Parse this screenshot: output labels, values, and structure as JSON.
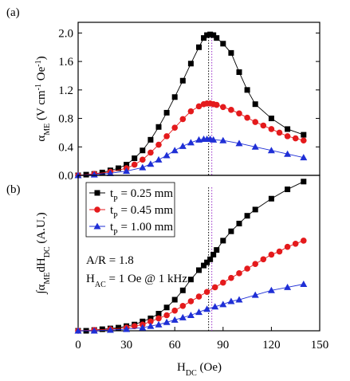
{
  "chart_data": [
    {
      "type": "line",
      "panel_label": "(a)",
      "ylabel": {
        "parts": [
          {
            "text": "α"
          },
          {
            "text": "ME",
            "shift": "sub"
          },
          {
            "text": " (V cm"
          },
          {
            "text": "-1",
            "shift": "super"
          },
          {
            "text": " Oe"
          },
          {
            "text": "-1",
            "shift": "super"
          },
          {
            "text": ")"
          }
        ]
      },
      "xlim": [
        0,
        150
      ],
      "ylim": [
        0,
        2.15
      ],
      "yticks": [
        {
          "value": 0,
          "label": "0.0"
        },
        0.4,
        0.8,
        1.2,
        1.6,
        {
          "value": 2,
          "label": "2.0"
        }
      ],
      "vlines": [
        {
          "x": 81,
          "color": "#000000"
        },
        {
          "x": 83,
          "color": "#9b30c9"
        }
      ],
      "series": [
        {
          "color": "#000000",
          "marker": "square",
          "x": [
            0,
            5,
            10,
            15,
            20,
            25,
            30,
            35,
            40,
            45,
            50,
            55,
            60,
            65,
            70,
            75,
            78,
            80,
            82,
            84,
            86,
            90,
            95,
            100,
            105,
            110,
            120,
            130,
            140
          ],
          "values": [
            0,
            0.01,
            0.02,
            0.04,
            0.07,
            0.1,
            0.15,
            0.24,
            0.35,
            0.5,
            0.68,
            0.88,
            1.1,
            1.33,
            1.57,
            1.8,
            1.93,
            1.97,
            1.98,
            1.97,
            1.93,
            1.85,
            1.72,
            1.45,
            1.2,
            1.0,
            0.8,
            0.65,
            0.57
          ]
        },
        {
          "color": "#e41a1c",
          "marker": "circle",
          "x": [
            0,
            10,
            20,
            30,
            35,
            40,
            45,
            50,
            55,
            60,
            65,
            70,
            75,
            78,
            80,
            82,
            84,
            86,
            90,
            95,
            100,
            105,
            110,
            115,
            120,
            125,
            130,
            135,
            140
          ],
          "values": [
            0,
            0.02,
            0.05,
            0.1,
            0.15,
            0.22,
            0.32,
            0.43,
            0.55,
            0.67,
            0.79,
            0.9,
            0.97,
            1.0,
            1.01,
            1.01,
            1.0,
            0.99,
            0.96,
            0.92,
            0.87,
            0.81,
            0.75,
            0.7,
            0.65,
            0.6,
            0.55,
            0.52,
            0.49
          ]
        },
        {
          "color": "#1f2fd6",
          "marker": "triangle",
          "x": [
            0,
            10,
            20,
            30,
            40,
            45,
            50,
            55,
            60,
            65,
            70,
            75,
            78,
            80,
            82,
            84,
            90,
            100,
            110,
            120,
            130,
            140
          ],
          "values": [
            0,
            0.01,
            0.03,
            0.06,
            0.11,
            0.16,
            0.22,
            0.28,
            0.35,
            0.41,
            0.46,
            0.5,
            0.51,
            0.51,
            0.51,
            0.5,
            0.49,
            0.45,
            0.4,
            0.35,
            0.3,
            0.25
          ]
        }
      ]
    },
    {
      "type": "line",
      "panel_label": "(b)",
      "ylabel": {
        "parts": [
          {
            "text": "∫α"
          },
          {
            "text": "ME",
            "shift": "sub"
          },
          {
            "text": "dH"
          },
          {
            "text": "DC",
            "shift": "sub"
          },
          {
            "text": " (A.U.)"
          }
        ]
      },
      "xlabel": {
        "parts": [
          {
            "text": "H"
          },
          {
            "text": "DC",
            "shift": "sub"
          },
          {
            "text": " (Oe)"
          }
        ]
      },
      "xlim": [
        0,
        150
      ],
      "ylim": [
        0,
        1
      ],
      "xticks": [
        0,
        30,
        60,
        90,
        120,
        150
      ],
      "vlines": [
        {
          "x": 81,
          "color": "#000000"
        },
        {
          "x": 83,
          "color": "#9b30c9"
        }
      ],
      "annotations": [
        {
          "parts": [
            {
              "text": "A/R = 1.8"
            }
          ]
        },
        {
          "parts": [
            {
              "text": "H"
            },
            {
              "text": "AC",
              "shift": "sub"
            },
            {
              "text": " = 1 Oe @ 1 kHz"
            }
          ]
        }
      ],
      "series": [
        {
          "name": {
            "parts": [
              {
                "text": "t"
              },
              {
                "text": "P",
                "shift": "sub"
              },
              {
                "text": " = 0.25 mm"
              }
            ]
          },
          "color": "#000000",
          "marker": "square",
          "x": [
            0,
            5,
            10,
            15,
            20,
            25,
            30,
            35,
            40,
            45,
            50,
            55,
            60,
            65,
            70,
            75,
            78,
            80,
            82,
            84,
            86,
            90,
            95,
            100,
            105,
            110,
            120,
            130,
            140
          ],
          "values": [
            0,
            0,
            0.005,
            0.01,
            0.015,
            0.02,
            0.03,
            0.04,
            0.06,
            0.08,
            0.11,
            0.15,
            0.2,
            0.26,
            0.33,
            0.39,
            0.42,
            0.44,
            0.46,
            0.49,
            0.52,
            0.58,
            0.64,
            0.69,
            0.74,
            0.78,
            0.85,
            0.91,
            0.96
          ]
        },
        {
          "name": {
            "parts": [
              {
                "text": "t"
              },
              {
                "text": "P",
                "shift": "sub"
              },
              {
                "text": " = 0.45 mm"
              }
            ]
          },
          "color": "#e41a1c",
          "marker": "circle",
          "x": [
            0,
            10,
            20,
            30,
            35,
            40,
            45,
            50,
            55,
            60,
            65,
            70,
            75,
            80,
            85,
            90,
            95,
            100,
            105,
            110,
            115,
            120,
            125,
            130,
            135,
            140
          ],
          "values": [
            0,
            0.005,
            0.01,
            0.02,
            0.03,
            0.04,
            0.06,
            0.08,
            0.1,
            0.13,
            0.16,
            0.19,
            0.22,
            0.25,
            0.28,
            0.31,
            0.34,
            0.37,
            0.4,
            0.43,
            0.46,
            0.49,
            0.51,
            0.54,
            0.56,
            0.58
          ]
        },
        {
          "name": {
            "parts": [
              {
                "text": "t"
              },
              {
                "text": "P",
                "shift": "sub"
              },
              {
                "text": " = 1.00 mm"
              }
            ]
          },
          "color": "#1f2fd6",
          "marker": "triangle",
          "x": [
            0,
            10,
            20,
            30,
            40,
            45,
            50,
            55,
            60,
            65,
            70,
            75,
            80,
            85,
            90,
            95,
            100,
            110,
            120,
            130,
            140
          ],
          "values": [
            0,
            0,
            0.005,
            0.01,
            0.02,
            0.03,
            0.04,
            0.055,
            0.07,
            0.085,
            0.1,
            0.12,
            0.14,
            0.155,
            0.17,
            0.19,
            0.2,
            0.23,
            0.26,
            0.28,
            0.3
          ]
        }
      ]
    }
  ]
}
